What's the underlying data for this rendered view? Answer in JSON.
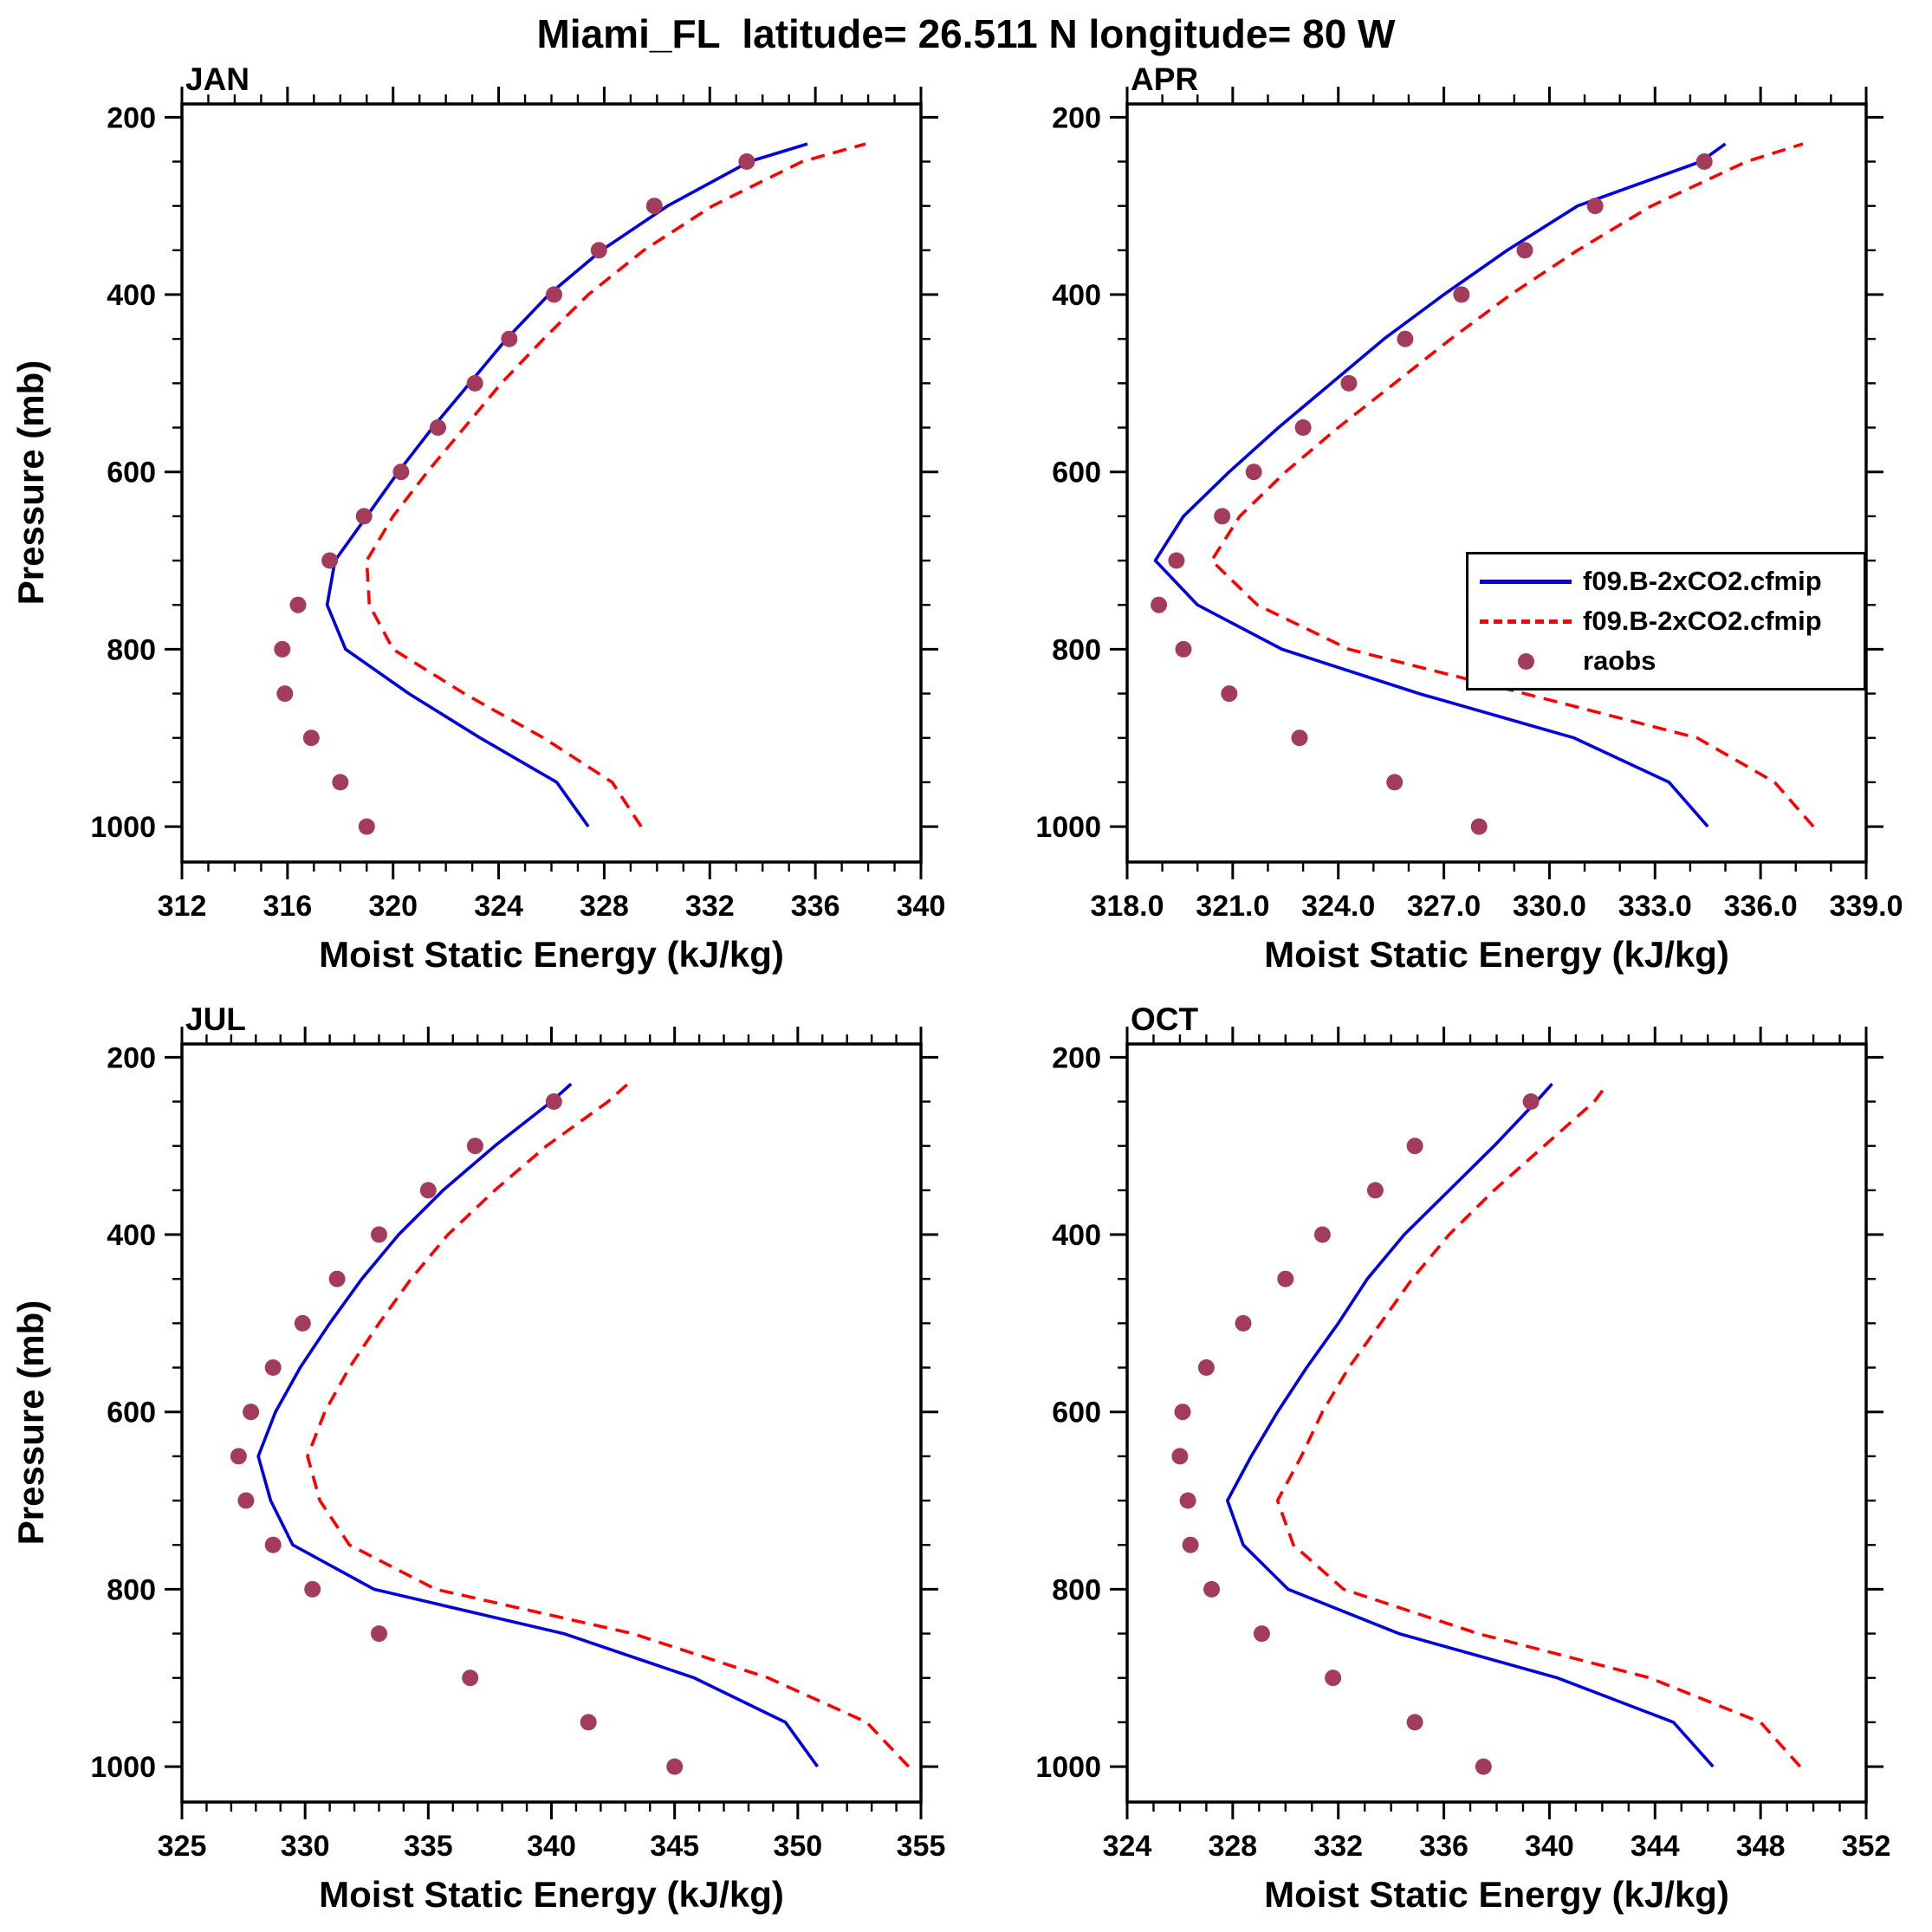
{
  "title": "Miami_FL  latitude= 26.511 N longitude= 80 W",
  "ylabel": "Pressure (mb)",
  "colors": {
    "axis": "#000000",
    "model": "#0000e0",
    "model2x": "#ff0000",
    "raobs": "#a23c5a"
  },
  "legend": {
    "items": [
      {
        "label": "f09.B-2xCO2.cfmip",
        "marker": "line-solid",
        "color": "model"
      },
      {
        "label": "f09.B-2xCO2.cfmip",
        "marker": "line-dashed",
        "color": "model2x"
      },
      {
        "label": "raobs",
        "marker": "dot",
        "color": "raobs"
      }
    ]
  },
  "chart_data": [
    {
      "type": "line",
      "label": "JAN",
      "xlabel": "Moist Static Energy (kJ/kg)",
      "ylabel": "Pressure (mb)",
      "xlim": [
        312,
        340
      ],
      "xticks": [
        312,
        316,
        320,
        324,
        328,
        332,
        336,
        340
      ],
      "xticklabels": [
        "312",
        "316",
        "320",
        "324",
        "328",
        "332",
        "336",
        "340"
      ],
      "x_minor_step": 1,
      "ylim": [
        185,
        1040
      ],
      "yticks": [
        200,
        400,
        600,
        800,
        1000
      ],
      "yticklabels": [
        "200",
        "400",
        "600",
        "800",
        "1000"
      ],
      "y_minor_step": 50,
      "pressure_levels": [
        1000,
        950,
        900,
        850,
        800,
        750,
        700,
        650,
        600,
        550,
        500,
        450,
        400,
        350,
        300,
        250,
        230
      ],
      "obs_levels": [
        1000,
        950,
        900,
        850,
        800,
        750,
        700,
        650,
        600,
        550,
        500,
        450,
        400,
        350,
        300,
        250
      ],
      "series": [
        {
          "name": "f09.B-2xCO2.cfmip",
          "style": "solid",
          "color": "model",
          "values": [
            327.4,
            326.2,
            323.3,
            320.6,
            318.2,
            317.5,
            317.8,
            319.0,
            320.2,
            321.5,
            322.9,
            324.3,
            325.9,
            327.9,
            330.4,
            333.5,
            335.7
          ]
        },
        {
          "name": "f09.B-2xCO2.cfmip",
          "style": "dashed",
          "color": "model2x",
          "values": [
            329.4,
            328.3,
            325.7,
            322.7,
            320.0,
            319.1,
            319.0,
            320.0,
            321.3,
            322.7,
            324.1,
            325.7,
            327.4,
            329.5,
            332.1,
            335.5,
            337.9
          ]
        },
        {
          "name": "raobs",
          "style": "dots",
          "color": "raobs",
          "values": [
            319.0,
            318.0,
            316.9,
            315.9,
            315.8,
            316.4,
            317.6,
            318.9,
            320.3,
            321.7,
            323.1,
            324.4,
            326.1,
            327.8,
            329.9,
            333.4
          ]
        }
      ]
    },
    {
      "type": "line",
      "label": "APR",
      "xlabel": "Moist Static Energy (kJ/kg)",
      "ylabel": "Pressure (mb)",
      "has_legend": true,
      "xlim": [
        318,
        339
      ],
      "xticks": [
        318,
        321,
        324,
        327,
        330,
        333,
        336,
        339
      ],
      "xticklabels": [
        "318.0",
        "321.0",
        "324.0",
        "327.0",
        "330.0",
        "333.0",
        "336.0",
        "339.0"
      ],
      "x_minor_step": 1,
      "ylim": [
        185,
        1040
      ],
      "yticks": [
        200,
        400,
        600,
        800,
        1000
      ],
      "yticklabels": [
        "200",
        "400",
        "600",
        "800",
        "1000"
      ],
      "y_minor_step": 50,
      "pressure_levels": [
        1000,
        950,
        900,
        850,
        800,
        750,
        700,
        650,
        600,
        550,
        500,
        450,
        400,
        350,
        300,
        250,
        230
      ],
      "obs_levels": [
        1000,
        950,
        900,
        850,
        800,
        750,
        700,
        650,
        600,
        550,
        500,
        450,
        400,
        350,
        300,
        250
      ],
      "series": [
        {
          "name": "f09.B-2xCO2.cfmip",
          "style": "solid",
          "color": "model",
          "values": [
            334.5,
            333.4,
            330.7,
            326.3,
            322.4,
            320.0,
            318.8,
            319.6,
            320.9,
            322.3,
            323.8,
            325.3,
            327.0,
            328.8,
            330.8,
            334.3,
            335.0
          ]
        },
        {
          "name": "f09.B-2xCO2.cfmip",
          "style": "dashed",
          "color": "model2x",
          "values": [
            337.5,
            336.4,
            334.2,
            329.3,
            324.3,
            321.7,
            320.4,
            321.2,
            322.5,
            324.0,
            325.6,
            327.2,
            328.9,
            330.8,
            332.9,
            335.6,
            337.2
          ]
        },
        {
          "name": "raobs",
          "style": "dots",
          "color": "raobs",
          "values": [
            328.0,
            325.6,
            322.9,
            320.9,
            319.6,
            318.9,
            319.4,
            320.7,
            321.6,
            323.0,
            324.3,
            325.9,
            327.5,
            329.3,
            331.3,
            334.4
          ]
        }
      ]
    },
    {
      "type": "line",
      "label": "JUL",
      "xlabel": "Moist Static Energy (kJ/kg)",
      "ylabel": "Pressure (mb)",
      "xlim": [
        325,
        355
      ],
      "xticks": [
        325,
        330,
        335,
        340,
        345,
        350,
        355
      ],
      "xticklabels": [
        "325",
        "330",
        "335",
        "340",
        "345",
        "350",
        "355"
      ],
      "x_minor_step": 1,
      "ylim": [
        185,
        1040
      ],
      "yticks": [
        200,
        400,
        600,
        800,
        1000
      ],
      "yticklabels": [
        "200",
        "400",
        "600",
        "800",
        "1000"
      ],
      "y_minor_step": 50,
      "pressure_levels": [
        1000,
        950,
        900,
        850,
        800,
        750,
        700,
        650,
        600,
        550,
        500,
        450,
        400,
        350,
        300,
        250,
        230
      ],
      "obs_levels": [
        1000,
        950,
        900,
        850,
        800,
        750,
        700,
        650,
        600,
        550,
        500,
        450,
        400,
        350,
        300,
        250
      ],
      "series": [
        {
          "name": "f09.B-2xCO2.cfmip",
          "style": "solid",
          "color": "model",
          "values": [
            350.8,
            349.5,
            345.8,
            340.5,
            332.8,
            329.5,
            328.6,
            328.1,
            328.8,
            329.8,
            331.0,
            332.3,
            333.8,
            335.6,
            337.7,
            340.0,
            340.8
          ]
        },
        {
          "name": "f09.B-2xCO2.cfmip",
          "style": "dashed",
          "color": "model2x",
          "values": [
            354.5,
            352.8,
            348.8,
            343.3,
            335.3,
            331.8,
            330.6,
            330.1,
            330.8,
            331.8,
            333.0,
            334.3,
            335.8,
            337.7,
            339.8,
            342.3,
            343.1
          ]
        },
        {
          "name": "raobs",
          "style": "dots",
          "color": "raobs",
          "values": [
            345.0,
            341.5,
            336.7,
            333.0,
            330.3,
            328.7,
            327.6,
            327.3,
            327.8,
            328.7,
            329.9,
            331.3,
            333.0,
            335.0,
            336.9,
            340.1
          ]
        }
      ]
    },
    {
      "type": "line",
      "label": "OCT",
      "xlabel": "Moist Static Energy (kJ/kg)",
      "ylabel": "Pressure (mb)",
      "xlim": [
        324,
        352
      ],
      "xticks": [
        324,
        328,
        332,
        336,
        340,
        344,
        348,
        352
      ],
      "xticklabels": [
        "324",
        "328",
        "332",
        "336",
        "340",
        "344",
        "348",
        "352"
      ],
      "x_minor_step": 1,
      "ylim": [
        185,
        1040
      ],
      "yticks": [
        200,
        400,
        600,
        800,
        1000
      ],
      "yticklabels": [
        "200",
        "400",
        "600",
        "800",
        "1000"
      ],
      "y_minor_step": 50,
      "pressure_levels": [
        1000,
        950,
        900,
        850,
        800,
        750,
        700,
        650,
        600,
        550,
        500,
        450,
        400,
        350,
        300,
        250,
        230
      ],
      "obs_levels": [
        1000,
        950,
        900,
        850,
        800,
        750,
        700,
        650,
        600,
        550,
        500,
        450,
        400,
        350,
        300,
        250
      ],
      "series": [
        {
          "name": "f09.B-2xCO2.cfmip",
          "style": "solid",
          "color": "model",
          "values": [
            346.2,
            344.7,
            340.3,
            334.3,
            330.1,
            328.4,
            327.8,
            328.7,
            329.7,
            330.8,
            332.0,
            333.1,
            334.5,
            336.2,
            337.9,
            339.5,
            340.1
          ]
        },
        {
          "name": "f09.B-2xCO2.cfmip",
          "style": "dashed",
          "color": "model2x",
          "values": [
            349.5,
            348.0,
            343.8,
            337.3,
            332.2,
            330.3,
            329.7,
            330.6,
            331.4,
            332.4,
            333.6,
            334.8,
            336.2,
            337.9,
            339.8,
            341.7,
            342.2
          ]
        },
        {
          "name": "raobs",
          "style": "dots",
          "color": "raobs",
          "values": [
            337.5,
            334.9,
            331.8,
            329.1,
            327.2,
            326.4,
            326.3,
            326.0,
            326.1,
            327.0,
            328.4,
            330.0,
            331.4,
            333.4,
            334.9,
            339.3
          ]
        }
      ]
    }
  ]
}
